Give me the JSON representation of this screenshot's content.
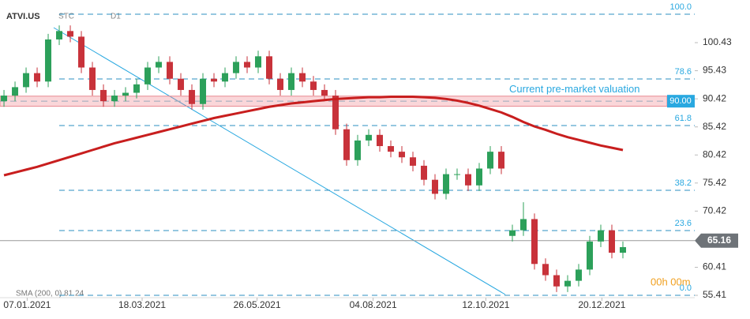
{
  "chart_data": {
    "type": "candlestick",
    "symbol": "ATVI.US",
    "chart_kind": "STC",
    "interval": "D1",
    "indicator_label": "SMA (200, 0) 81.24",
    "timer": "00h 00m",
    "annotation": "Current pre-market valuation",
    "valuation": {
      "value": 90,
      "label": "90.00"
    },
    "valuation_band": [
      89.1,
      90.9
    ],
    "current_price": 65.16,
    "ylim": [
      54.57,
      108.03
    ],
    "yticks": [
      100.43,
      95.43,
      90.42,
      85.42,
      80.42,
      75.42,
      70.42,
      60.41,
      55.41
    ],
    "xlim": [
      -0.36,
      62.5
    ],
    "xticks": [
      {
        "value": 2.1,
        "label": "07.01.2021"
      },
      {
        "value": 12.5,
        "label": "18.03.2021"
      },
      {
        "value": 22.9,
        "label": "26.05.2021"
      },
      {
        "value": 33.4,
        "label": "04.08.2021"
      },
      {
        "value": 43.6,
        "label": "12.10.2021"
      },
      {
        "value": 54.1,
        "label": "20.12.2021"
      }
    ],
    "fib_levels": [
      {
        "label": "100.0",
        "price": 105.5
      },
      {
        "label": "78.6",
        "price": 93.96
      },
      {
        "label": "61.8",
        "price": 85.66
      },
      {
        "label": "38.2",
        "price": 74.12
      },
      {
        "label": "23.6",
        "price": 66.95
      },
      {
        "label": "0.0",
        "price": 55.41
      }
    ],
    "up_color": "#2ca05a",
    "down_color": "#c8323a",
    "sma_color": "#c81e1e",
    "open": [
      90,
      91,
      92.5,
      95,
      93.5,
      101,
      102.5,
      101.5,
      96,
      92,
      90,
      91,
      91.5,
      93,
      96,
      97,
      94,
      92,
      89.5,
      94,
      93.5,
      95,
      97,
      96,
      98,
      94,
      92,
      95,
      93.5,
      92,
      91,
      85,
      79.5,
      83,
      84,
      82,
      81,
      80,
      78.5,
      76,
      73.5,
      77,
      77,
      75,
      78,
      81,
      66,
      67,
      69,
      61,
      59,
      57,
      58,
      60,
      65,
      67,
      63
    ],
    "high": [
      92,
      93.5,
      96,
      96,
      102,
      103.5,
      103.5,
      102.5,
      97,
      93,
      92,
      92.5,
      94,
      97,
      98,
      98,
      95,
      93,
      95,
      95,
      96,
      98,
      98,
      99,
      99,
      95,
      96,
      96,
      94.5,
      93,
      92,
      86,
      84,
      85,
      85,
      83,
      82,
      81,
      79.5,
      77,
      78,
      78,
      78,
      79,
      82,
      82,
      68,
      72,
      70,
      62,
      60,
      59,
      61,
      66,
      68,
      68,
      65
    ],
    "low": [
      89,
      90,
      91.5,
      92.5,
      92.5,
      100,
      100.5,
      95,
      91,
      89,
      89,
      90,
      90.5,
      92,
      95,
      93,
      91,
      88.5,
      88.5,
      92.5,
      92.5,
      94,
      95,
      95,
      93,
      91,
      91,
      92.5,
      91,
      90,
      84,
      78.5,
      78.5,
      82,
      81,
      80,
      79,
      77.5,
      75,
      72.5,
      72.5,
      76,
      74,
      74,
      77,
      77,
      65,
      66,
      60,
      58,
      56,
      56,
      57,
      59,
      64,
      62,
      62
    ],
    "close": [
      91,
      92.5,
      95,
      93.5,
      101,
      102.5,
      101.5,
      96,
      92,
      90,
      91,
      91.5,
      93,
      96,
      97,
      94,
      92,
      89.5,
      94,
      93.5,
      95,
      97,
      96,
      98,
      94,
      92,
      95,
      93.5,
      92,
      91,
      85,
      79.5,
      83,
      84,
      82,
      81,
      80,
      78.5,
      76,
      73.5,
      77,
      77,
      75,
      78,
      81,
      78,
      67,
      69,
      61,
      59,
      57,
      58,
      60,
      65,
      67,
      63,
      64
    ],
    "sma": [
      76.8,
      77.3,
      77.8,
      78.3,
      78.9,
      79.5,
      80.1,
      80.7,
      81.3,
      81.9,
      82.5,
      83,
      83.5,
      84,
      84.5,
      85,
      85.5,
      86,
      86.5,
      87,
      87.4,
      87.8,
      88.2,
      88.6,
      89,
      89.3,
      89.6,
      89.8,
      90,
      90.2,
      90.4,
      90.5,
      90.6,
      90.7,
      90.7,
      90.8,
      90.8,
      90.8,
      90.7,
      90.6,
      90.4,
      90.1,
      89.7,
      89.2,
      88.6,
      88,
      87.2,
      86.3,
      85.5,
      84.9,
      84.2,
      83.6,
      83.1,
      82.6,
      82.1,
      81.7,
      81.3
    ]
  }
}
